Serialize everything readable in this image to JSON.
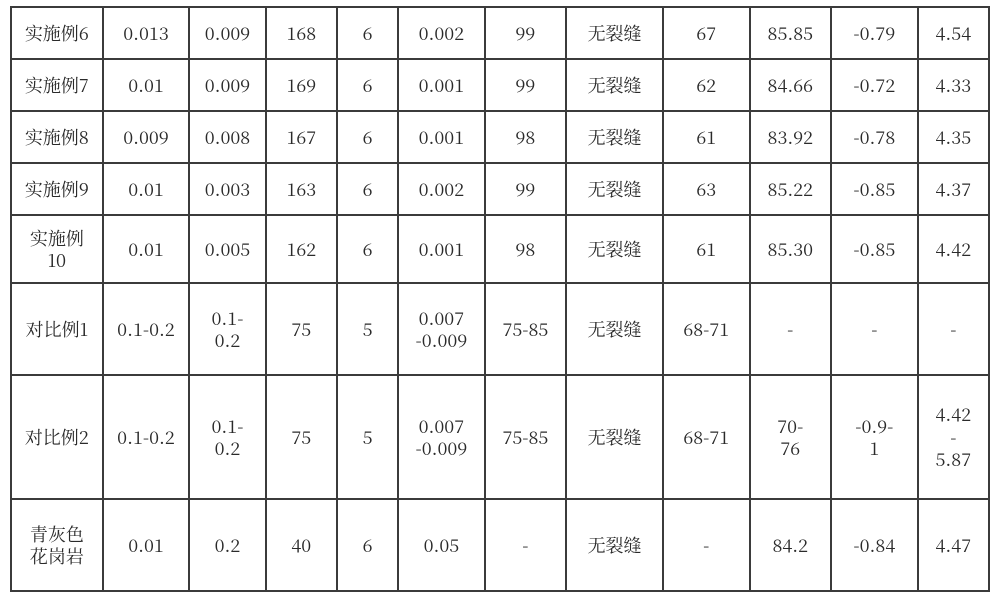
{
  "table": {
    "background_color": "#ffffff",
    "border_color": "#3b3b3b",
    "text_color": "#2a2a2a",
    "font_family": "SimSun",
    "font_size_pt": 13,
    "col_widths_pct": [
      9.0,
      8.5,
      7.5,
      7.0,
      6.0,
      8.5,
      8.0,
      9.5,
      8.5,
      8.0,
      8.5,
      7.0
    ],
    "row_classes": [
      "short",
      "short",
      "short",
      "short",
      "med",
      "tall",
      "taller",
      "tall"
    ],
    "rows": [
      [
        "实施例6",
        "0.013",
        "0.009",
        "168",
        "6",
        "0.002",
        "99",
        "无裂缝",
        "67",
        "85.85",
        "-0.79",
        "4.54"
      ],
      [
        "实施例7",
        "0.01",
        "0.009",
        "169",
        "6",
        "0.001",
        "99",
        "无裂缝",
        "62",
        "84.66",
        "-0.72",
        "4.33"
      ],
      [
        "实施例8",
        "0.009",
        "0.008",
        "167",
        "6",
        "0.001",
        "98",
        "无裂缝",
        "61",
        "83.92",
        "-0.78",
        "4.35"
      ],
      [
        "实施例9",
        "0.01",
        "0.003",
        "163",
        "6",
        "0.002",
        "99",
        "无裂缝",
        "63",
        "85.22",
        "-0.85",
        "4.37"
      ],
      [
        "实施例\n10",
        "0.01",
        "0.005",
        "162",
        "6",
        "0.001",
        "98",
        "无裂缝",
        "61",
        "85.30",
        "-0.85",
        "4.42"
      ],
      [
        "对比例1",
        "0.1-0.2",
        "0.1-\n0.2",
        "75",
        "5",
        "0.007\n-0.009",
        "75-85",
        "无裂缝",
        "68-71",
        "-",
        "-",
        "-"
      ],
      [
        "对比例2",
        "0.1-0.2",
        "0.1-\n0.2",
        "75",
        "5",
        "0.007\n-0.009",
        "75-85",
        "无裂缝",
        "68-71",
        "70-\n76",
        "-0.9-\n1",
        "4.42\n-\n5.87"
      ],
      [
        "青灰色\n花岗岩",
        "0.01",
        "0.2",
        "40",
        "6",
        "0.05",
        "-",
        "无裂缝",
        "-",
        "84.2",
        "-0.84",
        "4.47"
      ]
    ]
  }
}
